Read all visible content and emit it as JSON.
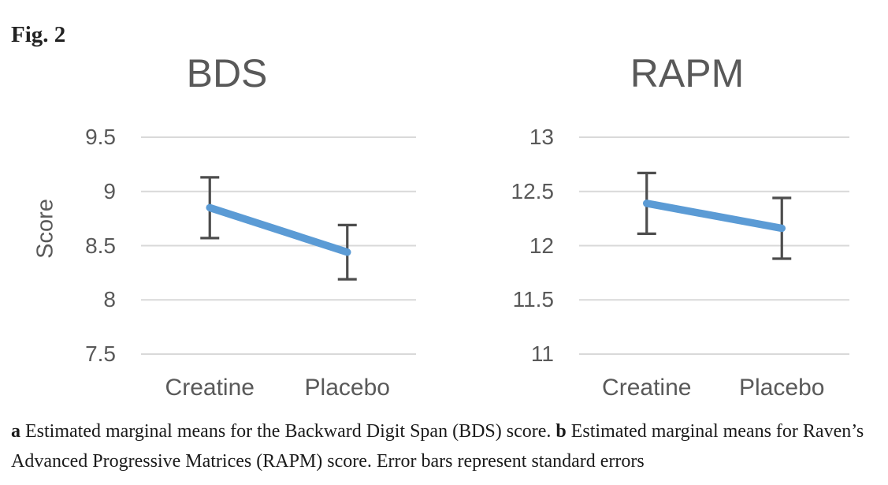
{
  "figure": {
    "label": "Fig. 2",
    "caption": {
      "segments": [
        {
          "text": "a",
          "bold": true
        },
        {
          "text": " Estimated marginal means for the Backward Digit Span (BDS) score. ",
          "bold": false
        },
        {
          "text": "b",
          "bold": true
        },
        {
          "text": " Estimated marginal means for Raven’s Advanced Progressive Matrices (RAPM) score. Error bars represent standard errors",
          "bold": false
        }
      ]
    }
  },
  "colors": {
    "line_blue": "#5b9bd5",
    "error_bar": "#4d4d4d",
    "gridline": "#d9d9d9",
    "chart_text": "#595959",
    "caption_text": "#1a1a1a"
  },
  "chart_data": [
    {
      "type": "line",
      "title": "BDS",
      "ylabel": "Score",
      "xlabel": "",
      "categories": [
        "Creatine",
        "Placebo"
      ],
      "series": [
        {
          "name": "Estimated marginal mean",
          "values": [
            8.85,
            8.44
          ],
          "error_upper": [
            9.13,
            8.69
          ],
          "error_lower": [
            8.57,
            8.19
          ]
        }
      ],
      "ylim": [
        7.5,
        9.5
      ],
      "yticks": [
        9.5,
        9,
        8.5,
        8,
        7.5
      ],
      "grid": true,
      "legend": "none",
      "error_bars": "standard errors"
    },
    {
      "type": "line",
      "title": "RAPM",
      "ylabel": "",
      "xlabel": "",
      "categories": [
        "Creatine",
        "Placebo"
      ],
      "series": [
        {
          "name": "Estimated marginal mean",
          "values": [
            12.39,
            12.16
          ],
          "error_upper": [
            12.67,
            12.44
          ],
          "error_lower": [
            12.11,
            11.88
          ]
        }
      ],
      "ylim": [
        11,
        13
      ],
      "yticks": [
        13,
        12.5,
        12,
        11.5,
        11
      ],
      "grid": true,
      "legend": "none",
      "error_bars": "standard errors"
    }
  ]
}
